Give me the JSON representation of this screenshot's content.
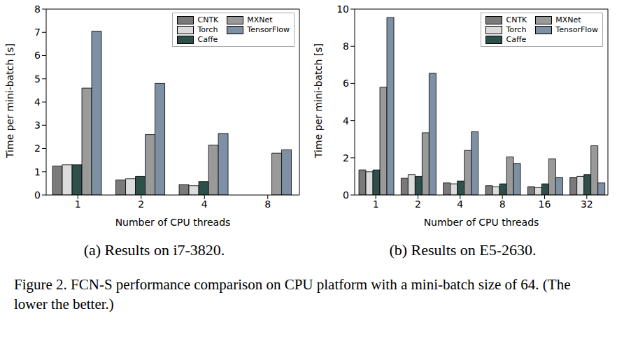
{
  "chart_data": [
    {
      "type": "bar",
      "caption": "(a) Results on i7-3820.",
      "x_label": "Number of CPU threads",
      "y_label": "Time per mini-batch [s]",
      "categories": [
        "1",
        "2",
        "4",
        "8"
      ],
      "series": [
        {
          "name": "CNTK",
          "color": "#7a7a7a",
          "values": [
            1.25,
            0.65,
            0.45,
            null
          ]
        },
        {
          "name": "Torch",
          "color": "#dcdcdc",
          "values": [
            1.3,
            0.7,
            0.4,
            null
          ]
        },
        {
          "name": "Caffe",
          "color": "#2f4f4a",
          "values": [
            1.3,
            0.8,
            0.58,
            null
          ]
        },
        {
          "name": "MXNet",
          "color": "#9a9a9a",
          "values": [
            4.6,
            2.6,
            2.15,
            1.8
          ]
        },
        {
          "name": "TensorFlow",
          "color": "#7d90a4",
          "values": [
            7.05,
            4.8,
            2.65,
            1.95
          ]
        }
      ],
      "ylim": [
        0,
        8
      ],
      "yticks": [
        0,
        1,
        2,
        3,
        4,
        5,
        6,
        7,
        8
      ],
      "grid": false,
      "legend": "upper right"
    },
    {
      "type": "bar",
      "caption": "(b) Results on E5-2630.",
      "x_label": "Number of CPU threads",
      "y_label": "Time per mini-batch [s]",
      "categories": [
        "1",
        "2",
        "4",
        "8",
        "16",
        "32"
      ],
      "series": [
        {
          "name": "CNTK",
          "color": "#7a7a7a",
          "values": [
            1.35,
            0.9,
            0.65,
            0.5,
            0.45,
            0.95
          ]
        },
        {
          "name": "Torch",
          "color": "#dcdcdc",
          "values": [
            1.25,
            1.1,
            0.6,
            0.45,
            0.4,
            1.0
          ]
        },
        {
          "name": "Caffe",
          "color": "#2f4f4a",
          "values": [
            1.35,
            1.0,
            0.75,
            0.6,
            0.6,
            1.1
          ]
        },
        {
          "name": "MXNet",
          "color": "#9a9a9a",
          "values": [
            5.8,
            3.35,
            2.4,
            2.05,
            1.95,
            2.65
          ]
        },
        {
          "name": "TensorFlow",
          "color": "#7d90a4",
          "values": [
            9.55,
            6.55,
            3.4,
            1.7,
            0.95,
            0.65
          ]
        }
      ],
      "ylim": [
        0,
        10
      ],
      "yticks": [
        0,
        2,
        4,
        6,
        8,
        10
      ],
      "grid": false,
      "legend": "upper right"
    }
  ],
  "figure_caption": "Figure 2. FCN-S performance comparison on CPU platform with a mini-batch size of 64. (The lower the better.)"
}
